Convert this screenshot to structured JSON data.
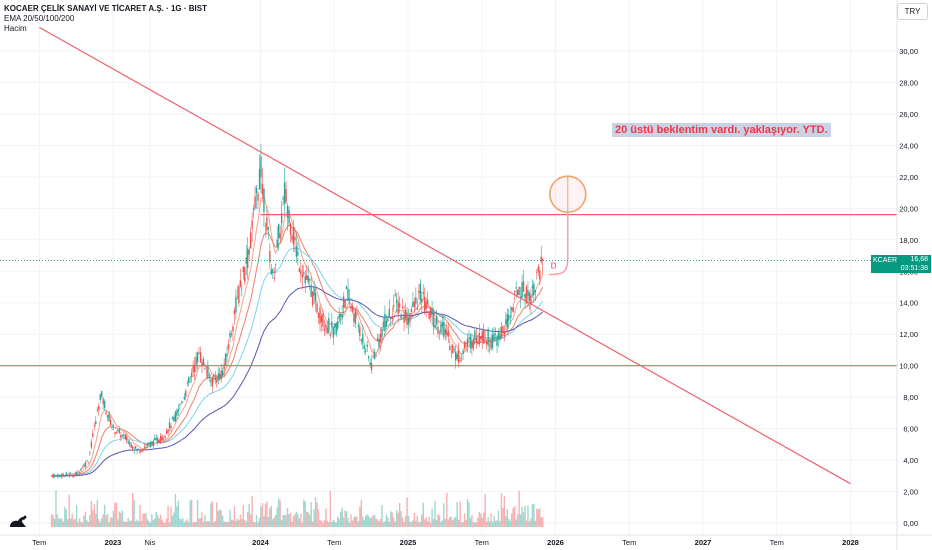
{
  "header": {
    "title": "KOCAER ÇELİK SANAYİ VE TİCARET A.Ş. · 1G · BIST",
    "indicator": "EMA 20/50/100/200",
    "volume": "Hacim"
  },
  "currency": "TRY",
  "annotation": "20 üstü beklentim vardı. yaklaşıyor. YTD.",
  "price_tag": {
    "symbol": "KCAER",
    "value": "16,68",
    "countdown": "03:51:38"
  },
  "marker_label": "D",
  "colors": {
    "trendline": "#f0606a",
    "candle_up": "#26a69a",
    "candle_down": "#ef5350",
    "ema20": "#f7a28b",
    "ema50": "#ef7f6b",
    "ema100": "#7fd3ec",
    "ema200": "#5b56b0",
    "annotation_bg": "#c9d3e6",
    "annotation_text": "#f23645",
    "price_tag_bg": "#089981"
  },
  "chart_data": {
    "type": "candlestick",
    "title": "KOCAER ÇELİK SANAYİ VE TİCARET A.Ş. · 1G · BIST",
    "y_axis": {
      "ticks": [
        "0,00",
        "2,00",
        "4,00",
        "6,00",
        "8,00",
        "10,00",
        "12,00",
        "14,00",
        "16,00",
        "18,00",
        "20,00",
        "22,00",
        "24,00",
        "26,00",
        "28,00",
        "30,00"
      ],
      "range": [
        -0.5,
        32.3
      ]
    },
    "x_axis": {
      "ticks": [
        "Tem",
        "2023",
        "Nis",
        "2024",
        "Tem",
        "2025",
        "Tem",
        "2026",
        "Tem",
        "2027",
        "Tem",
        "2028"
      ],
      "tick_dates": [
        "2022-07",
        "2023-01",
        "2023-04",
        "2024-01",
        "2024-07",
        "2025-01",
        "2025-07",
        "2026-01",
        "2026-07",
        "2027-01",
        "2027-07",
        "2028-01"
      ]
    },
    "price_path": [
      {
        "date": "2022-08",
        "close": 3.0
      },
      {
        "date": "2022-10",
        "close": 3.1
      },
      {
        "date": "2022-11",
        "close": 4.0
      },
      {
        "date": "2022-12",
        "close": 8.2
      },
      {
        "date": "2023-01",
        "close": 6.0
      },
      {
        "date": "2023-02",
        "close": 5.4
      },
      {
        "date": "2023-03",
        "close": 4.6
      },
      {
        "date": "2023-05",
        "close": 5.4
      },
      {
        "date": "2023-06",
        "close": 6.6
      },
      {
        "date": "2023-07",
        "close": 8.5
      },
      {
        "date": "2023-08",
        "close": 10.8
      },
      {
        "date": "2023-09",
        "close": 9.0
      },
      {
        "date": "2023-10",
        "close": 9.6
      },
      {
        "date": "2023-11",
        "close": 13.8
      },
      {
        "date": "2023-12",
        "close": 17.0
      },
      {
        "date": "2024-01",
        "close": 22.5
      },
      {
        "date": "2024-02",
        "close": 15.5
      },
      {
        "date": "2024-03",
        "close": 21.0
      },
      {
        "date": "2024-04",
        "close": 17.0
      },
      {
        "date": "2024-05",
        "close": 15.0
      },
      {
        "date": "2024-06",
        "close": 13.0
      },
      {
        "date": "2024-07",
        "close": 12.0
      },
      {
        "date": "2024-08",
        "close": 14.5
      },
      {
        "date": "2024-09",
        "close": 12.5
      },
      {
        "date": "2024-10",
        "close": 10.0
      },
      {
        "date": "2024-11",
        "close": 12.5
      },
      {
        "date": "2024-12",
        "close": 14.0
      },
      {
        "date": "2025-01",
        "close": 13.0
      },
      {
        "date": "2025-02",
        "close": 14.5
      },
      {
        "date": "2025-03",
        "close": 13.0
      },
      {
        "date": "2025-04",
        "close": 12.2
      },
      {
        "date": "2025-05",
        "close": 10.5
      },
      {
        "date": "2025-06",
        "close": 11.5
      },
      {
        "date": "2025-07",
        "close": 12.0
      },
      {
        "date": "2025-08",
        "close": 11.5
      },
      {
        "date": "2025-09",
        "close": 12.5
      },
      {
        "date": "2025-10",
        "close": 15.0
      },
      {
        "date": "2025-11",
        "close": 14.5
      },
      {
        "date": "2025-12",
        "close": 16.68
      }
    ],
    "ema_series": [
      {
        "name": "EMA 20",
        "color": "#f7a28b"
      },
      {
        "name": "EMA 50",
        "color": "#ef7f6b"
      },
      {
        "name": "EMA 100",
        "color": "#7fd3ec"
      },
      {
        "name": "EMA 200",
        "color": "#5b56b0"
      }
    ],
    "horizontal_lines": [
      {
        "value": 19.6,
        "from_date": "2024-01",
        "to_date": "end"
      },
      {
        "value": 10.0,
        "from_date": "start",
        "to_date": "end"
      }
    ],
    "trendline": [
      {
        "date": "2022-07",
        "value": 31.5
      },
      {
        "date": "2028-01",
        "value": 2.5
      }
    ],
    "target_circle": {
      "date": "2026-02",
      "value": 20.9
    },
    "last_price": 16.68,
    "volume": "present"
  }
}
